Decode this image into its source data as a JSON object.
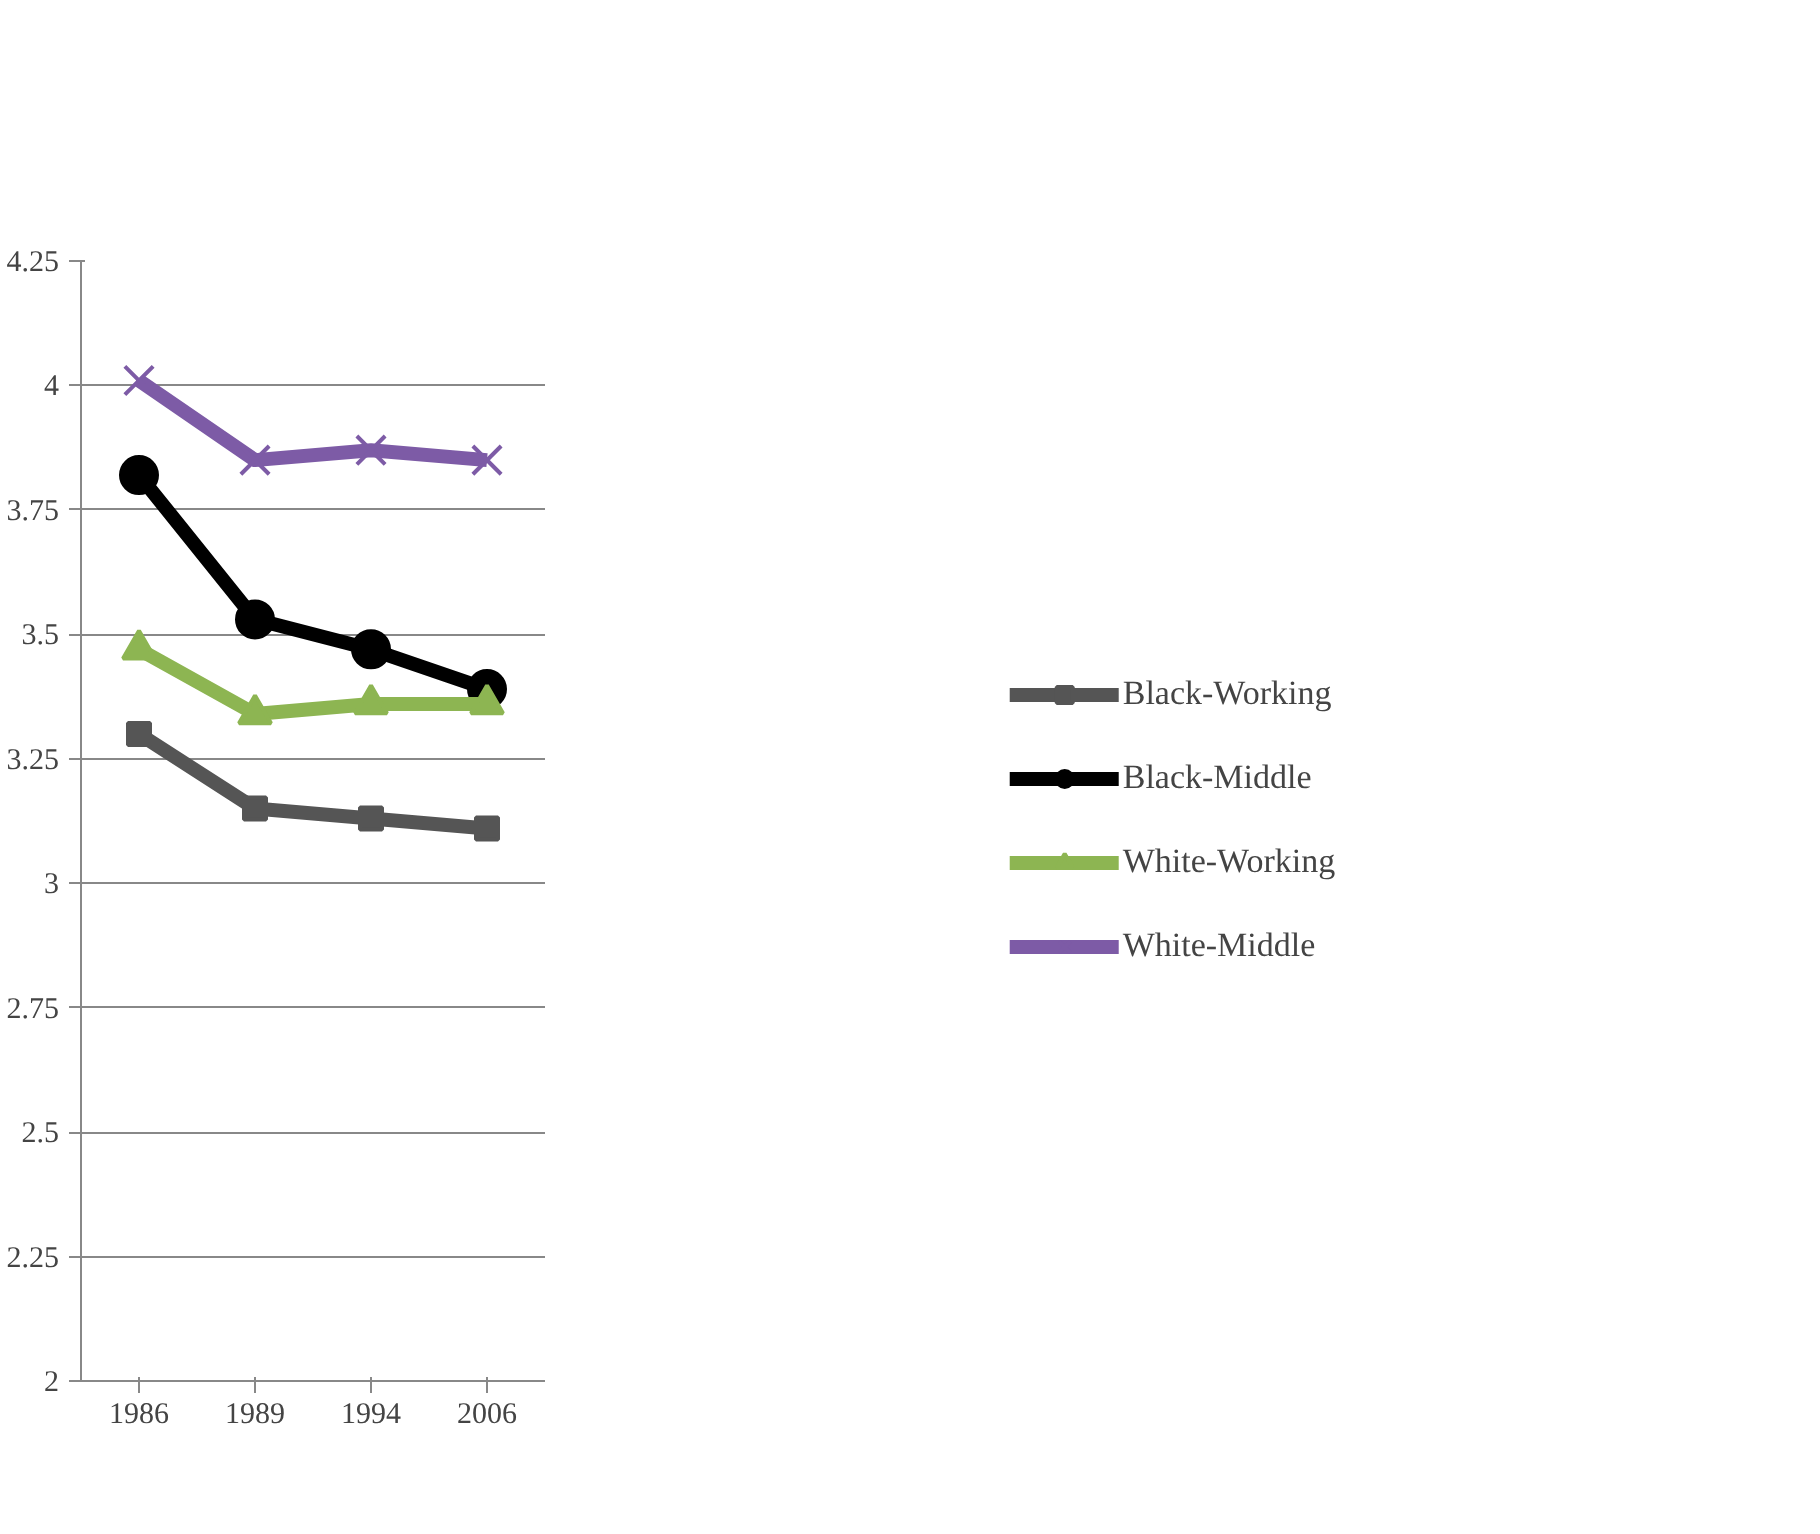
{
  "chart_data": {
    "type": "line",
    "categories": [
      "1986",
      "1989",
      "1994",
      "2006"
    ],
    "series": [
      {
        "name": "Black-Working",
        "color": "#555555",
        "marker": "square",
        "values": [
          3.3,
          3.15,
          3.13,
          3.11
        ]
      },
      {
        "name": "Black-Middle",
        "color": "#000000",
        "marker": "circle",
        "values": [
          3.82,
          3.53,
          3.47,
          3.39
        ]
      },
      {
        "name": "White-Working",
        "color": "#8db552",
        "marker": "triangle",
        "values": [
          3.47,
          3.34,
          3.36,
          3.36
        ]
      },
      {
        "name": "White-Middle",
        "color": "#7d5ba6",
        "marker": "cross",
        "values": [
          4.01,
          3.85,
          3.87,
          3.85
        ]
      }
    ],
    "ylim": [
      2,
      4.25
    ],
    "yticks": [
      2,
      2.25,
      2.5,
      2.75,
      3,
      3.25,
      3.5,
      3.75,
      4,
      4.25
    ],
    "grid": "y",
    "legend": "right",
    "line_style": "solid"
  }
}
